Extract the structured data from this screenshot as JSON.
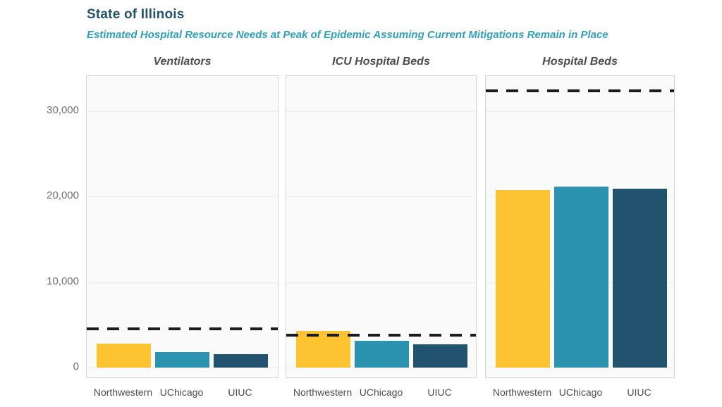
{
  "header": {
    "title": "State of Illinois",
    "subtitle": "Estimated Hospital Resource Needs at Peak of Epidemic Assuming Current Mitigations Remain in Place",
    "title_color": "#25526C",
    "subtitle_color": "#2F9EBE"
  },
  "chart_data": {
    "type": "bar",
    "title": "State of Illinois",
    "subtitle": "Estimated Hospital Resource Needs at Peak of Epidemic Assuming Current Mitigations Remain in Place",
    "categories": [
      "Northwestern",
      "UChicago",
      "UIUC"
    ],
    "facets": [
      {
        "title": "Ventilators",
        "capacity_dashed_line": 4500,
        "values": [
          2800,
          1800,
          1600
        ]
      },
      {
        "title": "ICU Hospital Beds",
        "capacity_dashed_line": 3800,
        "values": [
          4300,
          3100,
          2700
        ]
      },
      {
        "title": "Hospital Beds",
        "capacity_dashed_line": 32400,
        "values": [
          20800,
          21200,
          20900
        ]
      }
    ],
    "bar_colors": [
      "#FDC330",
      "#2B93AF",
      "#21536F"
    ],
    "capacity_line_color": "#1C1C1C",
    "capacity_line_style": "dashed",
    "y_ticks": [
      {
        "value": 0,
        "label": "0"
      },
      {
        "value": 10000,
        "label": "10,000"
      },
      {
        "value": 20000,
        "label": "20,000"
      },
      {
        "value": 30000,
        "label": "30,000"
      }
    ],
    "ylim": [
      0,
      33500
    ],
    "xlabel": "",
    "ylabel": "",
    "grid": true,
    "legend_position": "none",
    "panel_background": "#FAFAFA",
    "panel_border_color": "#D4D4D4",
    "gridline_color": "#ECECEC",
    "facet_title_color": "#4D4D4D",
    "axis_label_color": "#707070"
  }
}
